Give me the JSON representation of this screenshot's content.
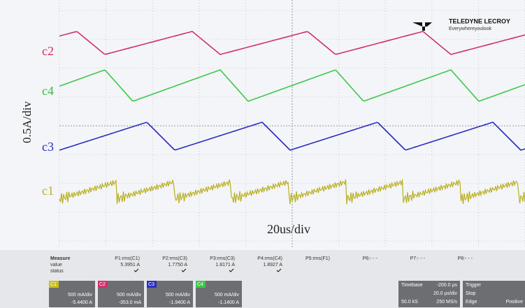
{
  "header": {
    "brand": "TELEDYNE LECROY",
    "tagline": "Everywhereyoulook"
  },
  "traces": {
    "labels": [
      "c2",
      "c4",
      "c3",
      "c1"
    ],
    "vertical_scale": "0.5A/div",
    "horizontal_scale": "20us/div"
  },
  "measure": {
    "row_labels": [
      "Measure",
      "value",
      "status"
    ],
    "columns": [
      {
        "name": "P1:rms(C1)",
        "value": "5.3951 A"
      },
      {
        "name": "P2:rms(C3)",
        "value": "1.7750 A"
      },
      {
        "name": "P3:rms(C3)",
        "value": "1.8171 A"
      },
      {
        "name": "P4:rms(C4)",
        "value": "1.8927 A"
      },
      {
        "name": "P5:rms(F1)",
        "value": ""
      },
      {
        "name": "P6:- - -",
        "value": ""
      },
      {
        "name": "P7:- - -",
        "value": ""
      },
      {
        "name": "P8:- - -",
        "value": ""
      }
    ]
  },
  "channels": [
    {
      "name": "C1",
      "scale": "500 mA/div",
      "offset": "-5.4400 A"
    },
    {
      "name": "C2",
      "scale": "500 mA/div",
      "offset": "-353.0 mA"
    },
    {
      "name": "C3",
      "scale": "500 mA/div",
      "offset": "-1.9400 A"
    },
    {
      "name": "C4",
      "scale": "500 mA/div",
      "offset": "-1.1400 A"
    }
  ],
  "timebase": {
    "title": "Timebase",
    "delay": "-200.0 µs",
    "scale": "20.0 µs/div",
    "samples": "50.0 kS",
    "rate": "250 MS/s"
  },
  "trigger": {
    "title": "Trigger",
    "mode": "Stop",
    "type": "Edge",
    "slope": "Positive"
  }
}
